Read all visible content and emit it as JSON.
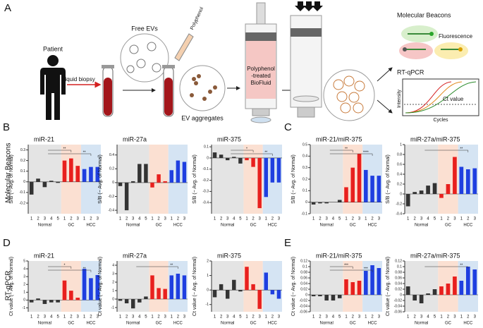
{
  "panels": {
    "a": "A",
    "b": "B",
    "c": "C",
    "d": "D",
    "e": "E"
  },
  "row_labels": {
    "beacons": "Molecular Beacons",
    "qpcr": "RT-qPCR"
  },
  "diagram": {
    "patient": "Patient",
    "liquid_biopsy": "Liquid biopsy",
    "free_evs": "Free EVs",
    "polyphenol": "Polyphenol",
    "ev_aggregates": "EV aggregates",
    "treated_line1": "Polyphenol",
    "treated_line2": "-treated",
    "treated_line3": "BioFluid",
    "molecular_beacons": "Molecular Beacons",
    "fluorescence": "Fluorescence",
    "rt_qpcr": "RT-qPCR",
    "intensity": "Intensity",
    "cycles": "Cycles",
    "ct_value": "Ct value"
  },
  "chart_data": [
    {
      "type": "bar",
      "title": "miR-21",
      "y_label": "S/B (− Avg. of Normal)",
      "ylim": [
        -0.3,
        0.35
      ],
      "yticks": [
        -0.2,
        -0.1,
        0,
        0.1,
        0.2,
        0.3
      ],
      "annotations": [
        "**",
        "**"
      ],
      "series": [
        {
          "name": "Normal",
          "color": "#333333",
          "band_color": "#e4e4e4",
          "categories": [
            "1",
            "2",
            "3",
            "4",
            "5"
          ],
          "values": [
            -0.12,
            0.03,
            -0.05,
            0.01,
            -0.01
          ]
        },
        {
          "name": "GC",
          "color": "#e8201e",
          "band_color": "#fbe0d2",
          "categories": [
            "1",
            "2",
            "3"
          ],
          "values": [
            0.2,
            0.22,
            0.15
          ]
        },
        {
          "name": "HCC",
          "color": "#1f3fe0",
          "band_color": "#d5e4f3",
          "categories": [
            "1",
            "2",
            "3"
          ],
          "values": [
            0.12,
            0.14,
            0.14
          ]
        }
      ]
    },
    {
      "type": "bar",
      "title": "miR-27a",
      "y_label": "S/B (− Avg. of Normal)",
      "ylim": [
        -0.45,
        0.55
      ],
      "yticks": [
        -0.4,
        -0.2,
        0,
        0.2,
        0.4
      ],
      "annotations": [],
      "series": [
        {
          "name": "Normal",
          "color": "#333333",
          "band_color": "#e4e4e4",
          "categories": [
            "1",
            "2",
            "3",
            "4",
            "5"
          ],
          "values": [
            -0.05,
            -0.4,
            0.02,
            0.27,
            0.27
          ]
        },
        {
          "name": "GC",
          "color": "#e8201e",
          "band_color": "#fbe0d2",
          "categories": [
            "1",
            "2",
            "3"
          ],
          "values": [
            -0.07,
            0.12,
            0.02
          ]
        },
        {
          "name": "HCC",
          "color": "#1f3fe0",
          "band_color": "#d5e4f3",
          "categories": [
            "1",
            "2",
            "3"
          ],
          "values": [
            0.18,
            0.32,
            0.3
          ]
        }
      ]
    },
    {
      "type": "bar",
      "title": "miR-375",
      "y_label": "S/B (− Avg. of Normal)",
      "ylim": [
        -0.5,
        0.12
      ],
      "yticks": [
        -0.4,
        -0.3,
        -0.2,
        -0.1,
        0,
        0.1
      ],
      "annotations": [
        "*",
        "**"
      ],
      "series": [
        {
          "name": "Normal",
          "color": "#333333",
          "band_color": "#e4e4e4",
          "categories": [
            "1",
            "2",
            "3",
            "4",
            "5"
          ],
          "values": [
            0.05,
            0.03,
            -0.02,
            0.01,
            -0.05
          ]
        },
        {
          "name": "GC",
          "color": "#e8201e",
          "band_color": "#fbe0d2",
          "categories": [
            "1",
            "2",
            "3"
          ],
          "values": [
            -0.02,
            -0.08,
            -0.45
          ]
        },
        {
          "name": "HCC",
          "color": "#1f3fe0",
          "band_color": "#d5e4f3",
          "categories": [
            "1",
            "2",
            "3"
          ],
          "values": [
            -0.35,
            -0.22,
            -0.22
          ]
        }
      ]
    },
    {
      "type": "bar",
      "title": "miR-21/miR-375",
      "y_label": "S/B (− Avg. of Normal)",
      "ylim": [
        -0.1,
        0.5
      ],
      "yticks": [
        -0.1,
        0,
        0.1,
        0.2,
        0.3,
        0.4,
        0.5
      ],
      "annotations": [
        "**",
        "****"
      ],
      "series": [
        {
          "name": "Normal",
          "color": "#333333",
          "band_color": "#e4e4e4",
          "categories": [
            "1",
            "2",
            "3",
            "4",
            "5"
          ],
          "values": [
            -0.02,
            -0.01,
            -0.01,
            0,
            0.02
          ]
        },
        {
          "name": "GC",
          "color": "#e8201e",
          "band_color": "#fbe0d2",
          "categories": [
            "1",
            "2",
            "3"
          ],
          "values": [
            0.13,
            0.3,
            0.42
          ]
        },
        {
          "name": "HCC",
          "color": "#1f3fe0",
          "band_color": "#d5e4f3",
          "categories": [
            "1",
            "2",
            "3"
          ],
          "values": [
            0.28,
            0.23,
            0.23
          ]
        }
      ]
    },
    {
      "type": "bar",
      "title": "miR-27a/miR-375",
      "y_label": "S/B (− Avg. of Normal)",
      "ylim": [
        -0.4,
        1
      ],
      "yticks": [
        -0.4,
        -0.2,
        0,
        0.2,
        0.4,
        0.6,
        0.8,
        1
      ],
      "annotations": [
        "**"
      ],
      "series": [
        {
          "name": "Normal",
          "color": "#333333",
          "band_color": "#e4e4e4",
          "categories": [
            "1",
            "2",
            "3",
            "4",
            "5"
          ],
          "values": [
            -0.25,
            0.04,
            0.07,
            0.17,
            0.22
          ]
        },
        {
          "name": "GC",
          "color": "#e8201e",
          "band_color": "#fbe0d2",
          "categories": [
            "1",
            "2",
            "3"
          ],
          "values": [
            -0.08,
            0.2,
            0.75
          ]
        },
        {
          "name": "HCC",
          "color": "#1f3fe0",
          "band_color": "#d5e4f3",
          "categories": [
            "1",
            "2",
            "3"
          ],
          "values": [
            0.55,
            0.5,
            0.52
          ]
        }
      ]
    },
    {
      "type": "bar",
      "title": "miR-21",
      "y_label": "Ct value (− Avg. of Normal)",
      "ylim": [
        -1.5,
        5
      ],
      "yticks": [
        -1,
        0,
        1,
        2,
        3,
        4,
        5
      ],
      "annotations": [
        "*",
        "**"
      ],
      "series": [
        {
          "name": "Normal",
          "color": "#333333",
          "band_color": "#e4e4e4",
          "categories": [
            "1",
            "2",
            "3",
            "4",
            "5"
          ],
          "values": [
            -0.3,
            0.2,
            -0.5,
            -0.3,
            -0.3
          ]
        },
        {
          "name": "GC",
          "color": "#e8201e",
          "band_color": "#fbe0d2",
          "categories": [
            "1",
            "2",
            "3"
          ],
          "values": [
            2.5,
            1.2,
            0.3
          ]
        },
        {
          "name": "HCC",
          "color": "#1f3fe0",
          "band_color": "#d5e4f3",
          "categories": [
            "1",
            "2",
            "3"
          ],
          "values": [
            4,
            2.8,
            3.2
          ]
        }
      ]
    },
    {
      "type": "bar",
      "title": "miR-27a",
      "y_label": "Ct value (− Avg. of Normal)",
      "ylim": [
        -1.5,
        4.5
      ],
      "yticks": [
        -1,
        0,
        1,
        2,
        3,
        4
      ],
      "annotations": [
        "**"
      ],
      "series": [
        {
          "name": "Normal",
          "color": "#333333",
          "band_color": "#e4e4e4",
          "categories": [
            "1",
            "2",
            "3",
            "4",
            "5"
          ],
          "values": [
            -0.2,
            -0.5,
            -1.1,
            -0.4,
            0.3
          ]
        },
        {
          "name": "GC",
          "color": "#e8201e",
          "band_color": "#fbe0d2",
          "categories": [
            "1",
            "2",
            "3"
          ],
          "values": [
            2.8,
            1.3,
            1.2
          ]
        },
        {
          "name": "HCC",
          "color": "#1f3fe0",
          "band_color": "#d5e4f3",
          "categories": [
            "1",
            "2",
            "3"
          ],
          "values": [
            2.8,
            3,
            2.8
          ]
        }
      ]
    },
    {
      "type": "bar",
      "title": "miR-375",
      "y_label": "Ct value (− Avg. of Normal)",
      "ylim": [
        -1.5,
        2
      ],
      "yticks": [
        -1,
        0,
        1,
        2
      ],
      "annotations": [],
      "series": [
        {
          "name": "Normal",
          "color": "#333333",
          "band_color": "#e4e4e4",
          "categories": [
            "1",
            "2",
            "3",
            "4",
            "5"
          ],
          "values": [
            -0.5,
            0.4,
            -0.6,
            0.7,
            -0.1
          ]
        },
        {
          "name": "GC",
          "color": "#e8201e",
          "band_color": "#fbe0d2",
          "categories": [
            "1",
            "2",
            "3"
          ],
          "values": [
            1.6,
            0.4,
            -1.3
          ]
        },
        {
          "name": "HCC",
          "color": "#1f3fe0",
          "band_color": "#d5e4f3",
          "categories": [
            "1",
            "2",
            "3"
          ],
          "values": [
            1.2,
            -0.3,
            -0.6
          ]
        }
      ]
    },
    {
      "type": "bar",
      "title": "miR-21/miR-375",
      "y_label": "Ct value (− Avg. of Normal)",
      "ylim": [
        -0.06,
        0.12
      ],
      "yticks": [
        -0.06,
        -0.04,
        -0.02,
        0,
        0.02,
        0.04,
        0.06,
        0.08,
        0.1,
        0.12
      ],
      "annotations": [
        "***",
        "***"
      ],
      "series": [
        {
          "name": "Normal",
          "color": "#333333",
          "band_color": "#e4e4e4",
          "categories": [
            "1",
            "2",
            "3",
            "4",
            "5"
          ],
          "values": [
            -0.005,
            -0.005,
            -0.02,
            -0.02,
            -0.012
          ]
        },
        {
          "name": "GC",
          "color": "#e8201e",
          "band_color": "#fbe0d2",
          "categories": [
            "1",
            "2",
            "3"
          ],
          "values": [
            0.055,
            0.045,
            0.05
          ]
        },
        {
          "name": "HCC",
          "color": "#1f3fe0",
          "band_color": "#d5e4f3",
          "categories": [
            "1",
            "2",
            "3"
          ],
          "values": [
            0.085,
            0.105,
            0.095
          ]
        }
      ]
    },
    {
      "type": "bar",
      "title": "miR-27a/miR-375",
      "y_label": "Ct value (− Avg. of Normal)",
      "ylim": [
        -0.06,
        0.12
      ],
      "yticks": [
        -0.06,
        -0.04,
        -0.02,
        0,
        0.02,
        0.04,
        0.06,
        0.08,
        0.1,
        0.12
      ],
      "annotations": [
        "**"
      ],
      "series": [
        {
          "name": "Normal",
          "color": "#333333",
          "band_color": "#e4e4e4",
          "categories": [
            "1",
            "2",
            "3",
            "4",
            "5"
          ],
          "values": [
            0.03,
            -0.02,
            -0.03,
            0.005,
            0.02
          ]
        },
        {
          "name": "GC",
          "color": "#e8201e",
          "band_color": "#fbe0d2",
          "categories": [
            "1",
            "2",
            "3"
          ],
          "values": [
            0.03,
            0.04,
            0.065
          ]
        },
        {
          "name": "HCC",
          "color": "#1f3fe0",
          "band_color": "#d5e4f3",
          "categories": [
            "1",
            "2",
            "3"
          ],
          "values": [
            0.05,
            0.1,
            0.09
          ]
        }
      ]
    }
  ]
}
